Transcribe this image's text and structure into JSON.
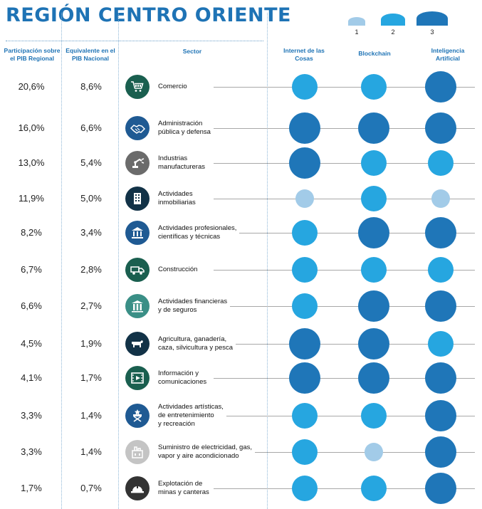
{
  "title": "REGIÓN CENTRO ORIENTE",
  "legend": [
    {
      "level": 1,
      "label": "1"
    },
    {
      "level": 2,
      "label": "2"
    },
    {
      "level": 3,
      "label": "3"
    }
  ],
  "colors": {
    "level1": "#a2cbe8",
    "level2": "#26a6e0",
    "level3": "#1f76b8",
    "title": "#1e73b5",
    "icon_dark": "#123247"
  },
  "headers": {
    "participation": "Participación sobre el PIB Regional",
    "equivalent": "Equivalente en el PIB Nacional",
    "sector": "Sector",
    "iot": "Internet de las Cosas",
    "blockchain": "Blockchain",
    "ai": "Inteligencia Artificial"
  },
  "rows": [
    {
      "participation": "20,6%",
      "equivalent": "8,6%",
      "sector_lines": [
        "Comercio"
      ],
      "icon": "cart-icon",
      "icon_color": "#1a5f4f",
      "iot": 2,
      "blockchain": 2,
      "ai": 3
    },
    {
      "participation": "16,0%",
      "equivalent": "6,6%",
      "sector_lines": [
        "Administración",
        "pública y defensa"
      ],
      "icon": "handshake-icon",
      "icon_color": "#1f5a93",
      "iot": 3,
      "blockchain": 3,
      "ai": 3
    },
    {
      "participation": "13,0%",
      "equivalent": "5,4%",
      "sector_lines": [
        "Industrias",
        "manufactureras"
      ],
      "icon": "robot-arm-icon",
      "icon_color": "#6b6b6b",
      "iot": 3,
      "blockchain": 2,
      "ai": 2
    },
    {
      "participation": "11,9%",
      "equivalent": "5,0%",
      "sector_lines": [
        "Actividades",
        "inmobiliarias"
      ],
      "icon": "building-icon",
      "icon_color": "#123247",
      "iot": 1,
      "blockchain": 2,
      "ai": 1
    },
    {
      "participation": "8,2%",
      "equivalent": "3,4%",
      "sector_lines": [
        "Actividades profesionales,",
        "científicas y técnicas"
      ],
      "icon": "institution-icon",
      "icon_color": "#1f5a93",
      "iot": 2,
      "blockchain": 3,
      "ai": 3
    },
    {
      "participation": "6,7%",
      "equivalent": "2,8%",
      "sector_lines": [
        "Construcción"
      ],
      "icon": "truck-icon",
      "icon_color": "#1a5f4f",
      "iot": 2,
      "blockchain": 2,
      "ai": 2
    },
    {
      "participation": "6,6%",
      "equivalent": "2,7%",
      "sector_lines": [
        "Actividades financieras",
        "y de seguros"
      ],
      "icon": "bank-columns-icon",
      "icon_color": "#3a8f86",
      "iot": 2,
      "blockchain": 3,
      "ai": 3
    },
    {
      "participation": "4,5%",
      "equivalent": "1,9%",
      "sector_lines": [
        "Agricultura, ganadería,",
        "caza, silvicultura y pesca"
      ],
      "icon": "cow-icon",
      "icon_color": "#123247",
      "iot": 3,
      "blockchain": 3,
      "ai": 2
    },
    {
      "participation": "4,1%",
      "equivalent": "1,7%",
      "sector_lines": [
        "Información y",
        "comunicaciones"
      ],
      "icon": "film-icon",
      "icon_color": "#1a5f4f",
      "iot": 3,
      "blockchain": 3,
      "ai": 3
    },
    {
      "participation": "3,3%",
      "equivalent": "1,4%",
      "sector_lines": [
        "Actividades artísticas,",
        "de entretenimiento",
        "y recreación"
      ],
      "icon": "director-chair-icon",
      "icon_color": "#1f5a93",
      "iot": 2,
      "blockchain": 2,
      "ai": 3
    },
    {
      "participation": "3,3%",
      "equivalent": "1,4%",
      "sector_lines": [
        "Suministro de electricidad, gas,",
        "vapor y aire acondicionado"
      ],
      "icon": "power-plant-icon",
      "icon_color": "#c4c4c4",
      "iot": 2,
      "blockchain": 1,
      "ai": 3
    },
    {
      "participation": "1,7%",
      "equivalent": "0,7%",
      "sector_lines": [
        "Explotación de",
        "minas y canteras"
      ],
      "icon": "hard-hat-icon",
      "icon_color": "#333333",
      "iot": 2,
      "blockchain": 2,
      "ai": 3
    }
  ]
}
